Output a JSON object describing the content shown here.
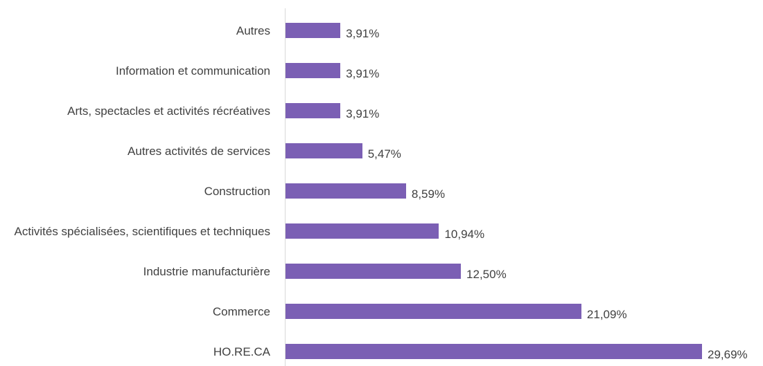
{
  "chart_data": {
    "type": "bar",
    "orientation": "horizontal",
    "categories": [
      "Autres",
      "Information et communication",
      "Arts, spectacles et activités récréatives",
      "Autres activités de services",
      "Construction",
      "Activités spécialisées, scientifiques et techniques",
      "Industrie manufacturière",
      "Commerce",
      "HO.RE.CA"
    ],
    "values": [
      3.91,
      3.91,
      3.91,
      5.47,
      8.59,
      10.94,
      12.5,
      21.09,
      29.69
    ],
    "value_labels": [
      "3,91%",
      "3,91%",
      "3,91%",
      "5,47%",
      "8,59%",
      "10,94%",
      "12,50%",
      "21,09%",
      "29,69%"
    ],
    "color": "#7b5fb4"
  }
}
